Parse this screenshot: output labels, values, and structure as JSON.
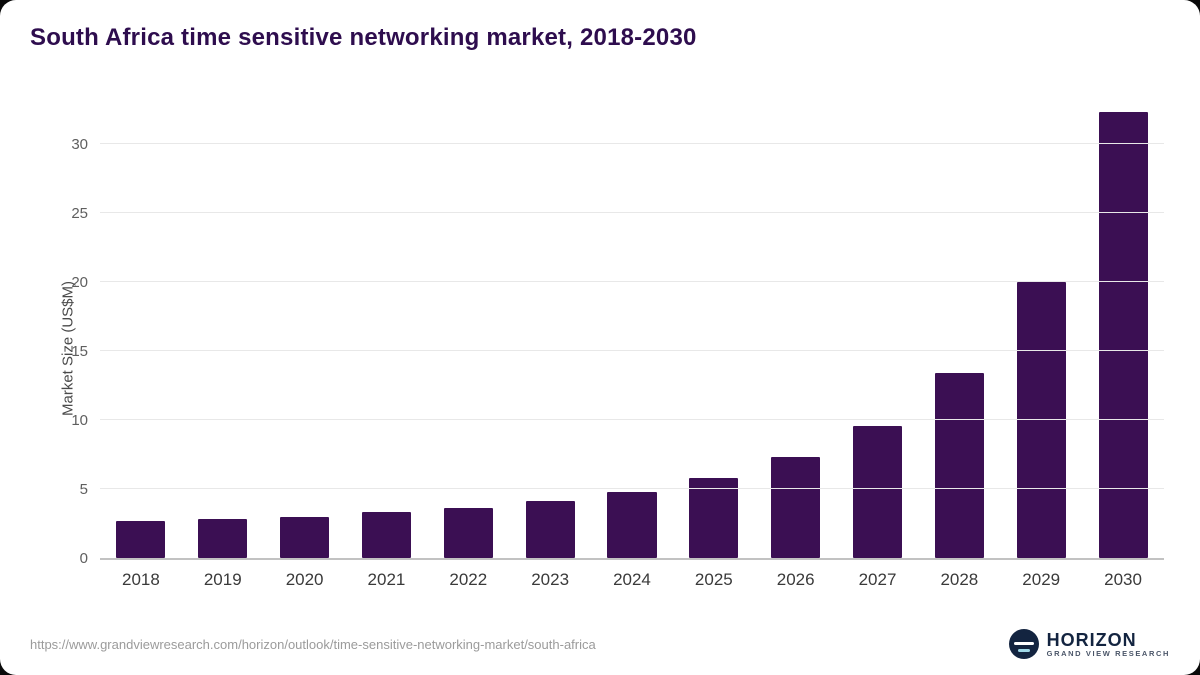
{
  "chart_data": {
    "type": "bar",
    "title": "South Africa time sensitive networking market, 2018-2030",
    "ylabel": "Market Size (US$M)",
    "xlabel": "",
    "categories": [
      "2018",
      "2019",
      "2020",
      "2021",
      "2022",
      "2023",
      "2024",
      "2025",
      "2026",
      "2027",
      "2028",
      "2029",
      "2030"
    ],
    "values": [
      2.7,
      2.8,
      3.0,
      3.3,
      3.6,
      4.1,
      4.8,
      5.8,
      7.3,
      9.6,
      13.4,
      20.0,
      32.3
    ],
    "ylim": [
      0,
      33.2
    ],
    "yticks": [
      0,
      5,
      10,
      15,
      20,
      25,
      30
    ],
    "grid": true,
    "legend": "none",
    "bar_color": "#3b0f53"
  },
  "footer": {
    "source_url": "https://www.grandviewresearch.com/horizon/outlook/time-sensitive-networking-market/south-africa",
    "logo_name": "HORIZON",
    "logo_subtitle": "GRAND VIEW RESEARCH"
  }
}
